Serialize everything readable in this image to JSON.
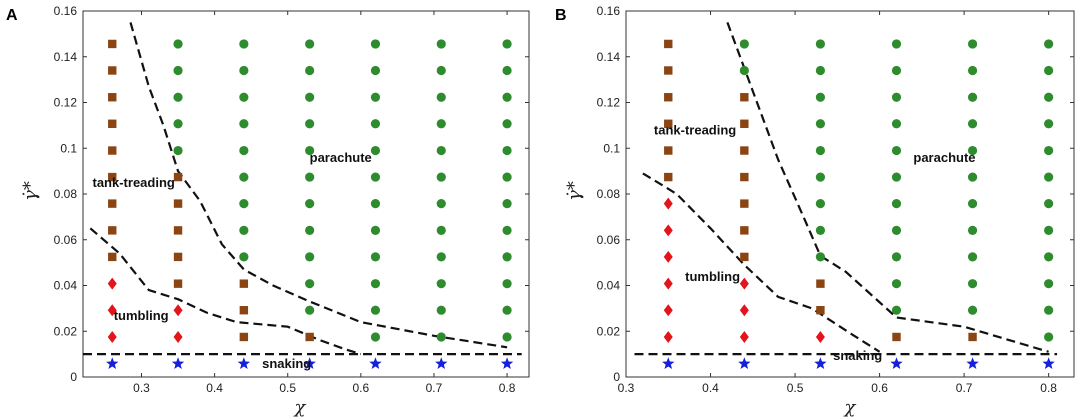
{
  "chart_data": [
    {
      "type": "scatter",
      "panel_label": "A",
      "xlabel": "χ",
      "ylabel": "γ̇*",
      "xlim": [
        0.22,
        0.83
      ],
      "ylim": [
        0,
        0.16
      ],
      "xticks": [
        0.3,
        0.4,
        0.5,
        0.6,
        0.7,
        0.8
      ],
      "yticks": [
        0,
        0.02,
        0.04,
        0.06,
        0.08,
        0.1,
        0.12,
        0.14,
        0.16
      ],
      "xtick_labels": [
        "0.3",
        "0.4",
        "0.5",
        "0.6",
        "0.7",
        "0.8"
      ],
      "ytick_labels": [
        "0",
        "0.02",
        "0.04",
        "0.06",
        "0.08",
        "0.1",
        "0.12",
        "0.14",
        "0.16"
      ],
      "series": [
        {
          "name": "tank-treading",
          "marker": "square",
          "color": "#8B4513",
          "points": [
            [
              0.26,
              0.0525
            ],
            [
              0.26,
              0.0641
            ],
            [
              0.26,
              0.0758
            ],
            [
              0.26,
              0.0874
            ],
            [
              0.26,
              0.099
            ],
            [
              0.26,
              0.1107
            ],
            [
              0.26,
              0.1223
            ],
            [
              0.26,
              0.134
            ],
            [
              0.26,
              0.1456
            ],
            [
              0.35,
              0.0408
            ],
            [
              0.35,
              0.0525
            ],
            [
              0.35,
              0.0641
            ],
            [
              0.35,
              0.0758
            ],
            [
              0.35,
              0.0874
            ],
            [
              0.44,
              0.0175
            ],
            [
              0.44,
              0.0292
            ],
            [
              0.44,
              0.0408
            ],
            [
              0.53,
              0.0175
            ]
          ]
        },
        {
          "name": "tumbling",
          "marker": "diamond",
          "color": "#E3141B",
          "points": [
            [
              0.26,
              0.0175
            ],
            [
              0.26,
              0.0292
            ],
            [
              0.26,
              0.0408
            ],
            [
              0.35,
              0.0175
            ],
            [
              0.35,
              0.0292
            ]
          ]
        },
        {
          "name": "parachute",
          "marker": "circle",
          "color": "#2E8B2E",
          "points": [
            [
              0.35,
              0.099
            ],
            [
              0.35,
              0.1107
            ],
            [
              0.35,
              0.1223
            ],
            [
              0.35,
              0.134
            ],
            [
              0.35,
              0.1456
            ],
            [
              0.44,
              0.0525
            ],
            [
              0.44,
              0.0641
            ],
            [
              0.44,
              0.0758
            ],
            [
              0.44,
              0.0874
            ],
            [
              0.44,
              0.099
            ],
            [
              0.44,
              0.1107
            ],
            [
              0.44,
              0.1223
            ],
            [
              0.44,
              0.134
            ],
            [
              0.44,
              0.1456
            ],
            [
              0.53,
              0.0292
            ],
            [
              0.53,
              0.0408
            ],
            [
              0.53,
              0.0525
            ],
            [
              0.53,
              0.0641
            ],
            [
              0.53,
              0.0758
            ],
            [
              0.53,
              0.0874
            ],
            [
              0.53,
              0.099
            ],
            [
              0.53,
              0.1107
            ],
            [
              0.53,
              0.1223
            ],
            [
              0.53,
              0.134
            ],
            [
              0.53,
              0.1456
            ],
            [
              0.62,
              0.0175
            ],
            [
              0.62,
              0.0292
            ],
            [
              0.62,
              0.0408
            ],
            [
              0.62,
              0.0525
            ],
            [
              0.62,
              0.0641
            ],
            [
              0.62,
              0.0758
            ],
            [
              0.62,
              0.0874
            ],
            [
              0.62,
              0.099
            ],
            [
              0.62,
              0.1107
            ],
            [
              0.62,
              0.1223
            ],
            [
              0.62,
              0.134
            ],
            [
              0.62,
              0.1456
            ],
            [
              0.71,
              0.0175
            ],
            [
              0.71,
              0.0292
            ],
            [
              0.71,
              0.0408
            ],
            [
              0.71,
              0.0525
            ],
            [
              0.71,
              0.0641
            ],
            [
              0.71,
              0.0758
            ],
            [
              0.71,
              0.0874
            ],
            [
              0.71,
              0.099
            ],
            [
              0.71,
              0.1107
            ],
            [
              0.71,
              0.1223
            ],
            [
              0.71,
              0.134
            ],
            [
              0.71,
              0.1456
            ],
            [
              0.8,
              0.0175
            ],
            [
              0.8,
              0.0292
            ],
            [
              0.8,
              0.0408
            ],
            [
              0.8,
              0.0525
            ],
            [
              0.8,
              0.0641
            ],
            [
              0.8,
              0.0758
            ],
            [
              0.8,
              0.0874
            ],
            [
              0.8,
              0.099
            ],
            [
              0.8,
              0.1107
            ],
            [
              0.8,
              0.1223
            ],
            [
              0.8,
              0.134
            ],
            [
              0.8,
              0.1456
            ]
          ]
        },
        {
          "name": "snaking",
          "marker": "star",
          "color": "#1520D8",
          "points": [
            [
              0.26,
              0.0058
            ],
            [
              0.35,
              0.0058
            ],
            [
              0.44,
              0.0058
            ],
            [
              0.53,
              0.0058
            ],
            [
              0.62,
              0.0058
            ],
            [
              0.71,
              0.0058
            ],
            [
              0.8,
              0.0058
            ]
          ]
        }
      ],
      "boundaries": [
        [
          [
            0.285,
            0.155
          ],
          [
            0.31,
            0.127
          ],
          [
            0.33,
            0.11
          ],
          [
            0.35,
            0.09
          ],
          [
            0.38,
            0.077
          ],
          [
            0.41,
            0.058
          ],
          [
            0.44,
            0.047
          ],
          [
            0.48,
            0.04
          ],
          [
            0.53,
            0.033
          ],
          [
            0.6,
            0.024
          ],
          [
            0.7,
            0.018
          ],
          [
            0.8,
            0.013
          ]
        ],
        [
          [
            0.23,
            0.065
          ],
          [
            0.27,
            0.054
          ],
          [
            0.31,
            0.038
          ],
          [
            0.35,
            0.034
          ],
          [
            0.39,
            0.028
          ],
          [
            0.43,
            0.024
          ],
          [
            0.5,
            0.022
          ],
          [
            0.545,
            0.016
          ],
          [
            0.58,
            0.012
          ],
          [
            0.6,
            0.01
          ]
        ],
        [
          [
            0.22,
            0.01
          ],
          [
            0.82,
            0.01
          ]
        ]
      ],
      "annotations": [
        {
          "text": "tank-treading",
          "x": 0.233,
          "y": 0.083
        },
        {
          "text": "parachute",
          "x": 0.53,
          "y": 0.094
        },
        {
          "text": "tumbling",
          "x": 0.262,
          "y": 0.025
        },
        {
          "text": "snaking",
          "x": 0.465,
          "y": 0.004
        }
      ]
    },
    {
      "type": "scatter",
      "panel_label": "B",
      "xlabel": "χ",
      "ylabel": "γ̇*",
      "xlim": [
        0.3,
        0.83
      ],
      "ylim": [
        0,
        0.16
      ],
      "xticks": [
        0.3,
        0.4,
        0.5,
        0.6,
        0.7,
        0.8
      ],
      "yticks": [
        0,
        0.02,
        0.04,
        0.06,
        0.08,
        0.1,
        0.12,
        0.14,
        0.16
      ],
      "xtick_labels": [
        "0.3",
        "0.4",
        "0.5",
        "0.6",
        "0.7",
        "0.8"
      ],
      "ytick_labels": [
        "0",
        "0.02",
        "0.04",
        "0.06",
        "0.08",
        "0.1",
        "0.12",
        "0.14",
        "0.16"
      ],
      "series": [
        {
          "name": "tank-treading",
          "marker": "square",
          "color": "#8B4513",
          "points": [
            [
              0.35,
              0.0874
            ],
            [
              0.35,
              0.099
            ],
            [
              0.35,
              0.1107
            ],
            [
              0.35,
              0.1223
            ],
            [
              0.35,
              0.134
            ],
            [
              0.35,
              0.1456
            ],
            [
              0.44,
              0.0525
            ],
            [
              0.44,
              0.0641
            ],
            [
              0.44,
              0.0758
            ],
            [
              0.44,
              0.0874
            ],
            [
              0.44,
              0.099
            ],
            [
              0.44,
              0.1107
            ],
            [
              0.44,
              0.1223
            ],
            [
              0.53,
              0.0292
            ],
            [
              0.53,
              0.0408
            ],
            [
              0.62,
              0.0175
            ],
            [
              0.71,
              0.0175
            ]
          ]
        },
        {
          "name": "tumbling",
          "marker": "diamond",
          "color": "#E3141B",
          "points": [
            [
              0.35,
              0.0175
            ],
            [
              0.35,
              0.0292
            ],
            [
              0.35,
              0.0408
            ],
            [
              0.35,
              0.0525
            ],
            [
              0.35,
              0.0641
            ],
            [
              0.35,
              0.0758
            ],
            [
              0.44,
              0.0175
            ],
            [
              0.44,
              0.0292
            ],
            [
              0.44,
              0.0408
            ],
            [
              0.53,
              0.0175
            ]
          ]
        },
        {
          "name": "parachute",
          "marker": "circle",
          "color": "#2E8B2E",
          "points": [
            [
              0.44,
              0.134
            ],
            [
              0.44,
              0.1456
            ],
            [
              0.53,
              0.0525
            ],
            [
              0.53,
              0.0641
            ],
            [
              0.53,
              0.0758
            ],
            [
              0.53,
              0.0874
            ],
            [
              0.53,
              0.099
            ],
            [
              0.53,
              0.1107
            ],
            [
              0.53,
              0.1223
            ],
            [
              0.53,
              0.134
            ],
            [
              0.53,
              0.1456
            ],
            [
              0.62,
              0.0292
            ],
            [
              0.62,
              0.0408
            ],
            [
              0.62,
              0.0525
            ],
            [
              0.62,
              0.0641
            ],
            [
              0.62,
              0.0758
            ],
            [
              0.62,
              0.0874
            ],
            [
              0.62,
              0.099
            ],
            [
              0.62,
              0.1107
            ],
            [
              0.62,
              0.1223
            ],
            [
              0.62,
              0.134
            ],
            [
              0.62,
              0.1456
            ],
            [
              0.71,
              0.0292
            ],
            [
              0.71,
              0.0408
            ],
            [
              0.71,
              0.0525
            ],
            [
              0.71,
              0.0641
            ],
            [
              0.71,
              0.0758
            ],
            [
              0.71,
              0.0874
            ],
            [
              0.71,
              0.099
            ],
            [
              0.71,
              0.1107
            ],
            [
              0.71,
              0.1223
            ],
            [
              0.71,
              0.134
            ],
            [
              0.71,
              0.1456
            ],
            [
              0.8,
              0.0175
            ],
            [
              0.8,
              0.0292
            ],
            [
              0.8,
              0.0408
            ],
            [
              0.8,
              0.0525
            ],
            [
              0.8,
              0.0641
            ],
            [
              0.8,
              0.0758
            ],
            [
              0.8,
              0.0874
            ],
            [
              0.8,
              0.099
            ],
            [
              0.8,
              0.1107
            ],
            [
              0.8,
              0.1223
            ],
            [
              0.8,
              0.134
            ],
            [
              0.8,
              0.1456
            ]
          ]
        },
        {
          "name": "snaking",
          "marker": "star",
          "color": "#1520D8",
          "points": [
            [
              0.35,
              0.0058
            ],
            [
              0.44,
              0.0058
            ],
            [
              0.53,
              0.0058
            ],
            [
              0.62,
              0.0058
            ],
            [
              0.71,
              0.0058
            ],
            [
              0.8,
              0.0058
            ]
          ]
        }
      ],
      "boundaries": [
        [
          [
            0.42,
            0.155
          ],
          [
            0.45,
            0.125
          ],
          [
            0.48,
            0.095
          ],
          [
            0.51,
            0.07
          ],
          [
            0.53,
            0.053
          ],
          [
            0.56,
            0.046
          ],
          [
            0.62,
            0.026
          ],
          [
            0.7,
            0.022
          ],
          [
            0.8,
            0.011
          ]
        ],
        [
          [
            0.32,
            0.089
          ],
          [
            0.36,
            0.08
          ],
          [
            0.4,
            0.065
          ],
          [
            0.44,
            0.049
          ],
          [
            0.48,
            0.035
          ],
          [
            0.52,
            0.03
          ],
          [
            0.57,
            0.018
          ],
          [
            0.6,
            0.011
          ]
        ],
        [
          [
            0.31,
            0.01
          ],
          [
            0.81,
            0.01
          ]
        ]
      ],
      "annotations": [
        {
          "text": "tank-treading",
          "x": 0.333,
          "y": 0.106
        },
        {
          "text": "parachute",
          "x": 0.64,
          "y": 0.094
        },
        {
          "text": "tumbling",
          "x": 0.37,
          "y": 0.042
        },
        {
          "text": "snaking",
          "x": 0.545,
          "y": 0.0075
        }
      ]
    }
  ]
}
